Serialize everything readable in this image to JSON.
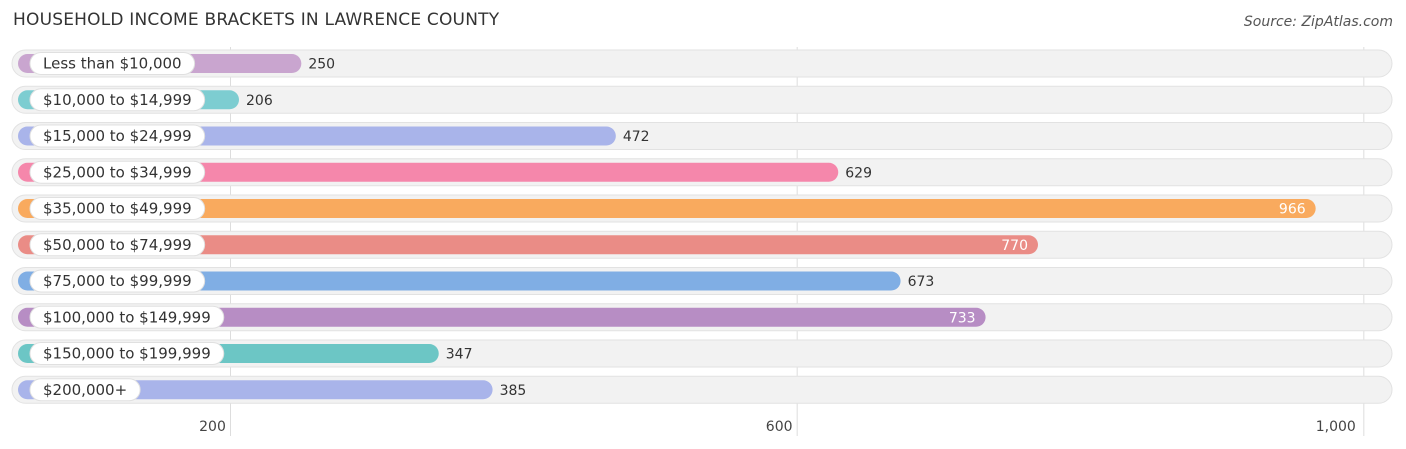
{
  "title": "HOUSEHOLD INCOME BRACKETS IN LAWRENCE COUNTY",
  "source": "Source: ZipAtlas.com",
  "chart_data": {
    "type": "bar",
    "orientation": "horizontal",
    "title": "HOUSEHOLD INCOME BRACKETS IN LAWRENCE COUNTY",
    "categories": [
      "Less than $10,000",
      "$10,000 to $14,999",
      "$15,000 to $24,999",
      "$25,000 to $34,999",
      "$35,000 to $49,999",
      "$50,000 to $74,999",
      "$75,000 to $99,999",
      "$100,000 to $149,999",
      "$150,000 to $199,999",
      "$200,000+"
    ],
    "values": [
      250,
      206,
      472,
      629,
      966,
      770,
      673,
      733,
      347,
      385
    ],
    "colors": [
      "#c9a5cf",
      "#7dcdd1",
      "#a9b4ea",
      "#f587ab",
      "#f9aa5e",
      "#ea8c86",
      "#80aee4",
      "#b78dc4",
      "#6cc6c5",
      "#a9b4ea"
    ],
    "xticks": [
      200,
      600,
      1000
    ],
    "xtick_labels": [
      "200",
      "600",
      "1,000"
    ],
    "xlim": [
      50,
      1010
    ],
    "grid": true
  }
}
